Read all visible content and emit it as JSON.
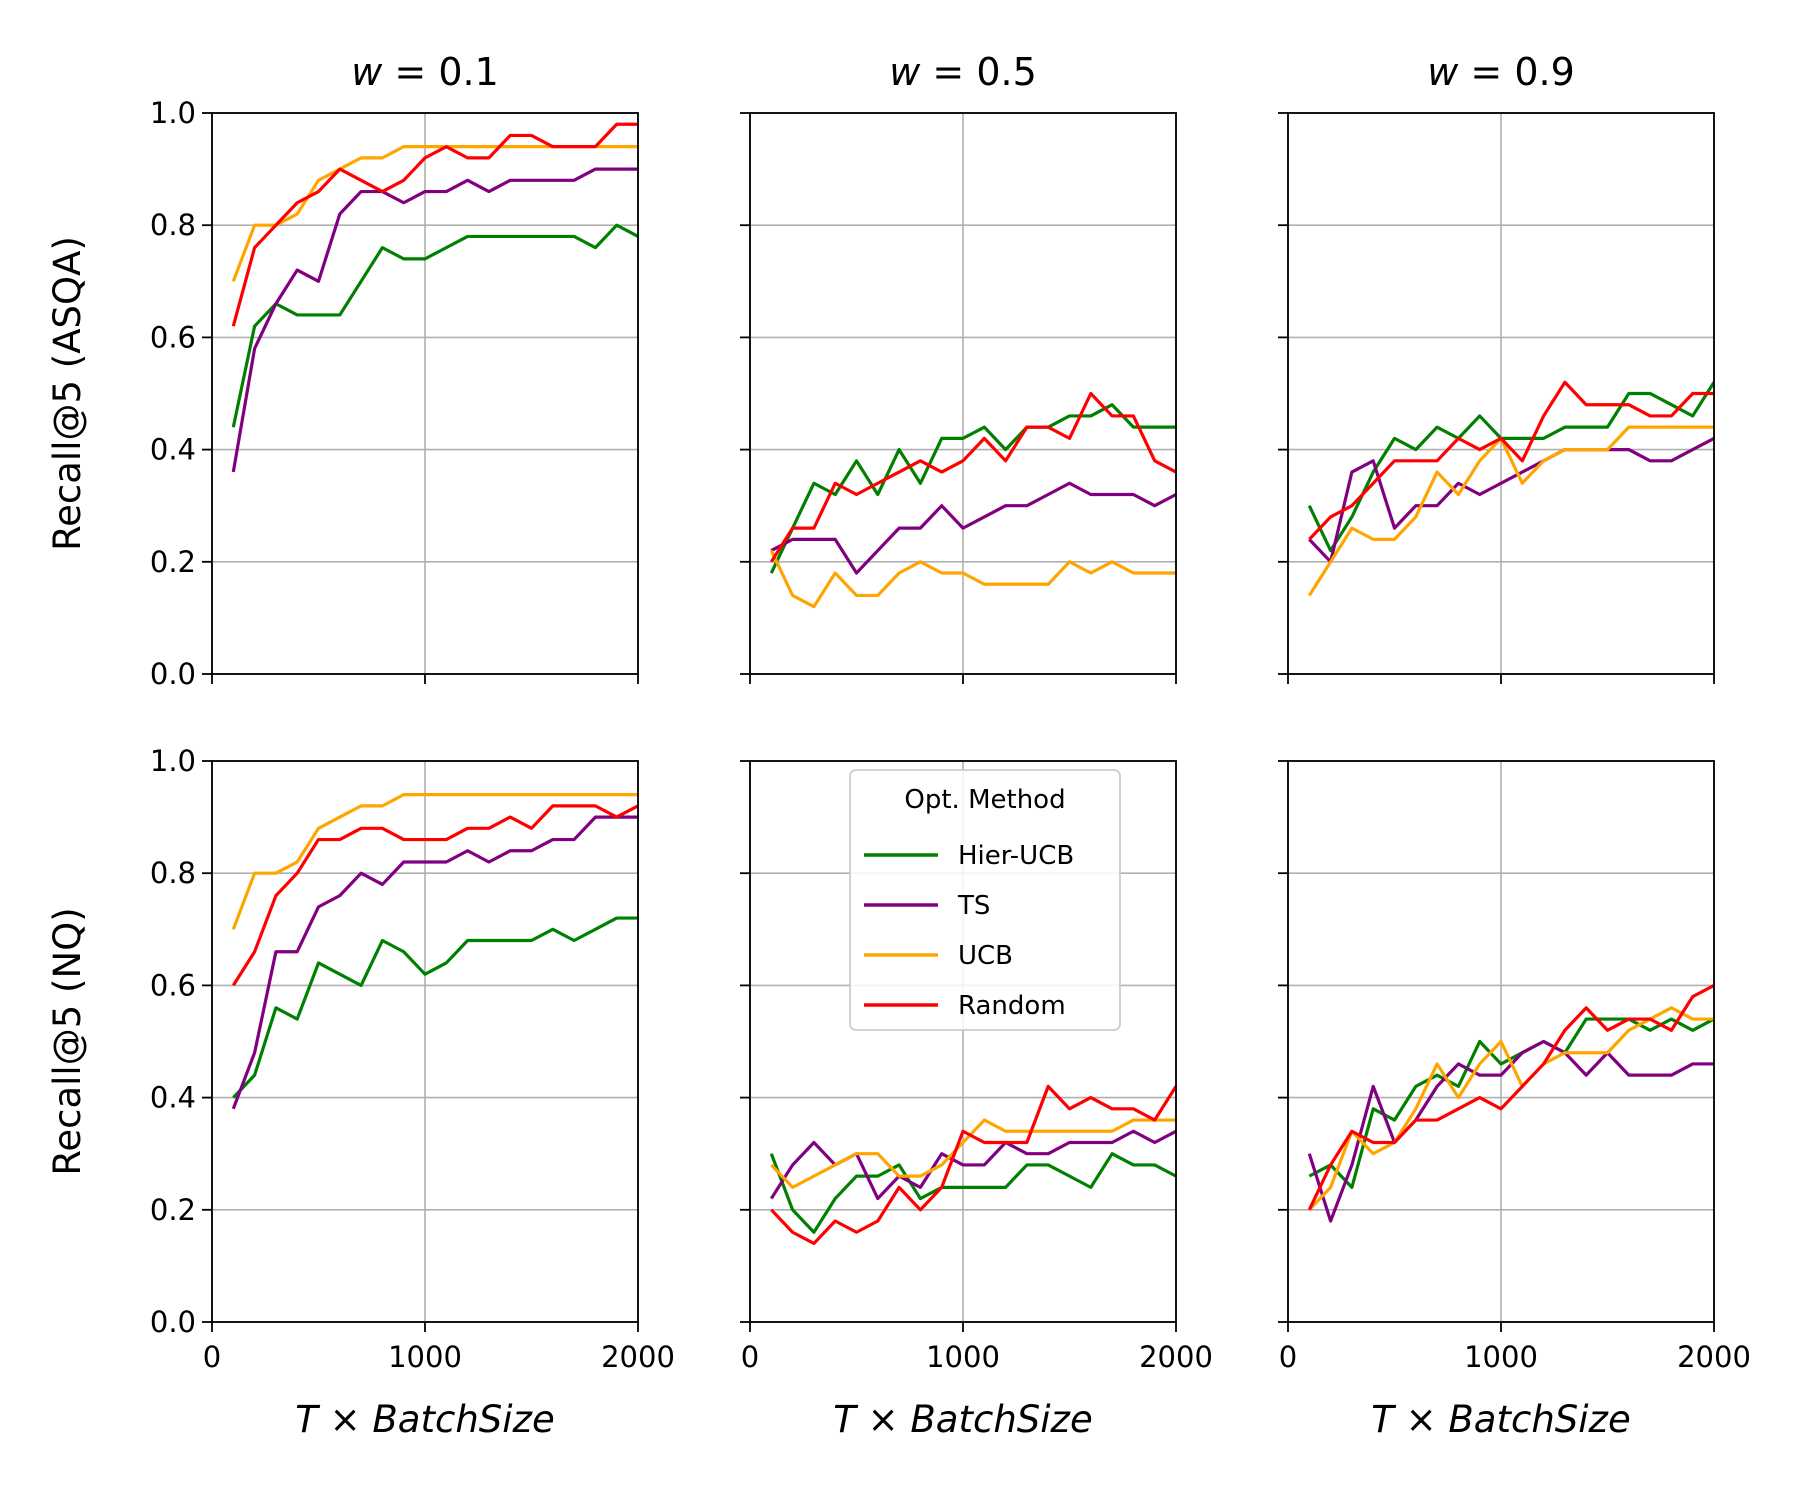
{
  "colors": {
    "Hier-UCB": "#008000",
    "TS": "#800080",
    "UCB": "#ffa500",
    "Random": "#ff0000",
    "grid": "#b0b0b0"
  },
  "legend": {
    "title": "Opt. Method",
    "entries": [
      "Hier-UCB",
      "TS",
      "UCB",
      "Random"
    ],
    "panel": 4,
    "placement": "upper-center"
  },
  "axes": {
    "xlabel_base": "T",
    "xlabel_times": " × ",
    "xlabel_rest": "BatchSize",
    "xticks": [
      0,
      1000,
      2000
    ],
    "yticks": [
      0.0,
      0.2,
      0.4,
      0.6,
      0.8,
      1.0
    ],
    "xlim": [
      0,
      2000
    ],
    "ylim": [
      0.0,
      1.0
    ]
  },
  "rows": [
    {
      "ylabel": "Recall@5 (ASQA)"
    },
    {
      "ylabel": "Recall@5 (NQ)"
    }
  ],
  "columns": [
    {
      "title_var": "w",
      "title_eq": " = ",
      "title_val": "0.1"
    },
    {
      "title_var": "w",
      "title_eq": " = ",
      "title_val": "0.5"
    },
    {
      "title_var": "w",
      "title_eq": " = ",
      "title_val": "0.9"
    }
  ],
  "chart_data": [
    {
      "type": "line",
      "row": 0,
      "col": 0,
      "grid": true,
      "x": [
        100,
        200,
        300,
        400,
        500,
        600,
        700,
        800,
        900,
        1000,
        1100,
        1200,
        1300,
        1400,
        1500,
        1600,
        1700,
        1800,
        1900,
        2000
      ],
      "series": [
        {
          "name": "Hier-UCB",
          "values": [
            0.44,
            0.62,
            0.66,
            0.64,
            0.64,
            0.64,
            0.7,
            0.76,
            0.74,
            0.74,
            0.76,
            0.78,
            0.78,
            0.78,
            0.78,
            0.78,
            0.78,
            0.76,
            0.8,
            0.78
          ]
        },
        {
          "name": "TS",
          "values": [
            0.36,
            0.58,
            0.66,
            0.72,
            0.7,
            0.82,
            0.86,
            0.86,
            0.84,
            0.86,
            0.86,
            0.88,
            0.86,
            0.88,
            0.88,
            0.88,
            0.88,
            0.9,
            0.9,
            0.9
          ]
        },
        {
          "name": "UCB",
          "values": [
            0.7,
            0.8,
            0.8,
            0.82,
            0.88,
            0.9,
            0.92,
            0.92,
            0.94,
            0.94,
            0.94,
            0.94,
            0.94,
            0.94,
            0.94,
            0.94,
            0.94,
            0.94,
            0.94,
            0.94
          ]
        },
        {
          "name": "Random",
          "values": [
            0.62,
            0.76,
            0.8,
            0.84,
            0.86,
            0.9,
            0.88,
            0.86,
            0.88,
            0.92,
            0.94,
            0.92,
            0.92,
            0.96,
            0.96,
            0.94,
            0.94,
            0.94,
            0.98,
            0.98
          ]
        }
      ]
    },
    {
      "type": "line",
      "row": 0,
      "col": 1,
      "grid": true,
      "x": [
        100,
        200,
        300,
        400,
        500,
        600,
        700,
        800,
        900,
        1000,
        1100,
        1200,
        1300,
        1400,
        1500,
        1600,
        1700,
        1800,
        1900,
        2000
      ],
      "series": [
        {
          "name": "Hier-UCB",
          "values": [
            0.18,
            0.26,
            0.34,
            0.32,
            0.38,
            0.32,
            0.4,
            0.34,
            0.42,
            0.42,
            0.44,
            0.4,
            0.44,
            0.44,
            0.46,
            0.46,
            0.48,
            0.44,
            0.44,
            0.44
          ]
        },
        {
          "name": "TS",
          "values": [
            0.22,
            0.24,
            0.24,
            0.24,
            0.18,
            0.22,
            0.26,
            0.26,
            0.3,
            0.26,
            0.28,
            0.3,
            0.3,
            0.32,
            0.34,
            0.32,
            0.32,
            0.32,
            0.3,
            0.32
          ]
        },
        {
          "name": "UCB",
          "values": [
            0.22,
            0.14,
            0.12,
            0.18,
            0.14,
            0.14,
            0.18,
            0.2,
            0.18,
            0.18,
            0.16,
            0.16,
            0.16,
            0.16,
            0.2,
            0.18,
            0.2,
            0.18,
            0.18,
            0.18
          ]
        },
        {
          "name": "Random",
          "values": [
            0.2,
            0.26,
            0.26,
            0.34,
            0.32,
            0.34,
            0.36,
            0.38,
            0.36,
            0.38,
            0.42,
            0.38,
            0.44,
            0.44,
            0.42,
            0.5,
            0.46,
            0.46,
            0.38,
            0.36
          ]
        }
      ]
    },
    {
      "type": "line",
      "row": 0,
      "col": 2,
      "grid": true,
      "x": [
        100,
        200,
        300,
        400,
        500,
        600,
        700,
        800,
        900,
        1000,
        1100,
        1200,
        1300,
        1400,
        1500,
        1600,
        1700,
        1800,
        1900,
        2000
      ],
      "series": [
        {
          "name": "Hier-UCB",
          "values": [
            0.3,
            0.22,
            0.28,
            0.36,
            0.42,
            0.4,
            0.44,
            0.42,
            0.46,
            0.42,
            0.42,
            0.42,
            0.44,
            0.44,
            0.44,
            0.5,
            0.5,
            0.48,
            0.46,
            0.52
          ]
        },
        {
          "name": "TS",
          "values": [
            0.24,
            0.2,
            0.36,
            0.38,
            0.26,
            0.3,
            0.3,
            0.34,
            0.32,
            0.34,
            0.36,
            0.38,
            0.4,
            0.4,
            0.4,
            0.4,
            0.38,
            0.38,
            0.4,
            0.42
          ]
        },
        {
          "name": "UCB",
          "values": [
            0.14,
            0.2,
            0.26,
            0.24,
            0.24,
            0.28,
            0.36,
            0.32,
            0.38,
            0.42,
            0.34,
            0.38,
            0.4,
            0.4,
            0.4,
            0.44,
            0.44,
            0.44,
            0.44,
            0.44
          ]
        },
        {
          "name": "Random",
          "values": [
            0.24,
            0.28,
            0.3,
            0.34,
            0.38,
            0.38,
            0.38,
            0.42,
            0.4,
            0.42,
            0.38,
            0.46,
            0.52,
            0.48,
            0.48,
            0.48,
            0.46,
            0.46,
            0.5,
            0.5
          ]
        }
      ]
    },
    {
      "type": "line",
      "row": 1,
      "col": 0,
      "grid": true,
      "x": [
        100,
        200,
        300,
        400,
        500,
        600,
        700,
        800,
        900,
        1000,
        1100,
        1200,
        1300,
        1400,
        1500,
        1600,
        1700,
        1800,
        1900,
        2000
      ],
      "series": [
        {
          "name": "Hier-UCB",
          "values": [
            0.4,
            0.44,
            0.56,
            0.54,
            0.64,
            0.62,
            0.6,
            0.68,
            0.66,
            0.62,
            0.64,
            0.68,
            0.68,
            0.68,
            0.68,
            0.7,
            0.68,
            0.7,
            0.72,
            0.72
          ]
        },
        {
          "name": "TS",
          "values": [
            0.38,
            0.48,
            0.66,
            0.66,
            0.74,
            0.76,
            0.8,
            0.78,
            0.82,
            0.82,
            0.82,
            0.84,
            0.82,
            0.84,
            0.84,
            0.86,
            0.86,
            0.9,
            0.9,
            0.9
          ]
        },
        {
          "name": "UCB",
          "values": [
            0.7,
            0.8,
            0.8,
            0.82,
            0.88,
            0.9,
            0.92,
            0.92,
            0.94,
            0.94,
            0.94,
            0.94,
            0.94,
            0.94,
            0.94,
            0.94,
            0.94,
            0.94,
            0.94,
            0.94
          ]
        },
        {
          "name": "Random",
          "values": [
            0.6,
            0.66,
            0.76,
            0.8,
            0.86,
            0.86,
            0.88,
            0.88,
            0.86,
            0.86,
            0.86,
            0.88,
            0.88,
            0.9,
            0.88,
            0.92,
            0.92,
            0.92,
            0.9,
            0.92
          ]
        }
      ]
    },
    {
      "type": "line",
      "row": 1,
      "col": 1,
      "grid": true,
      "x": [
        100,
        200,
        300,
        400,
        500,
        600,
        700,
        800,
        900,
        1000,
        1100,
        1200,
        1300,
        1400,
        1500,
        1600,
        1700,
        1800,
        1900,
        2000
      ],
      "series": [
        {
          "name": "Hier-UCB",
          "values": [
            0.3,
            0.2,
            0.16,
            0.22,
            0.26,
            0.26,
            0.28,
            0.22,
            0.24,
            0.24,
            0.24,
            0.24,
            0.28,
            0.28,
            0.26,
            0.24,
            0.3,
            0.28,
            0.28,
            0.26
          ]
        },
        {
          "name": "TS",
          "values": [
            0.22,
            0.28,
            0.32,
            0.28,
            0.3,
            0.22,
            0.26,
            0.24,
            0.3,
            0.28,
            0.28,
            0.32,
            0.3,
            0.3,
            0.32,
            0.32,
            0.32,
            0.34,
            0.32,
            0.34
          ]
        },
        {
          "name": "UCB",
          "values": [
            0.28,
            0.24,
            0.26,
            0.28,
            0.3,
            0.3,
            0.26,
            0.26,
            0.28,
            0.32,
            0.36,
            0.34,
            0.34,
            0.34,
            0.34,
            0.34,
            0.34,
            0.36,
            0.36,
            0.36
          ]
        },
        {
          "name": "Random",
          "values": [
            0.2,
            0.16,
            0.14,
            0.18,
            0.16,
            0.18,
            0.24,
            0.2,
            0.24,
            0.34,
            0.32,
            0.32,
            0.32,
            0.42,
            0.38,
            0.4,
            0.38,
            0.38,
            0.36,
            0.42
          ]
        }
      ]
    },
    {
      "type": "line",
      "row": 1,
      "col": 2,
      "grid": true,
      "x": [
        100,
        200,
        300,
        400,
        500,
        600,
        700,
        800,
        900,
        1000,
        1100,
        1200,
        1300,
        1400,
        1500,
        1600,
        1700,
        1800,
        1900,
        2000
      ],
      "series": [
        {
          "name": "Hier-UCB",
          "values": [
            0.26,
            0.28,
            0.24,
            0.38,
            0.36,
            0.42,
            0.44,
            0.42,
            0.5,
            0.46,
            0.48,
            0.5,
            0.48,
            0.54,
            0.54,
            0.54,
            0.52,
            0.54,
            0.52,
            0.54
          ]
        },
        {
          "name": "TS",
          "values": [
            0.3,
            0.18,
            0.28,
            0.42,
            0.32,
            0.36,
            0.42,
            0.46,
            0.44,
            0.44,
            0.48,
            0.5,
            0.48,
            0.44,
            0.48,
            0.44,
            0.44,
            0.44,
            0.46,
            0.46
          ]
        },
        {
          "name": "UCB",
          "values": [
            0.2,
            0.24,
            0.34,
            0.3,
            0.32,
            0.38,
            0.46,
            0.4,
            0.46,
            0.5,
            0.42,
            0.46,
            0.48,
            0.48,
            0.48,
            0.52,
            0.54,
            0.56,
            0.54,
            0.54
          ]
        },
        {
          "name": "Random",
          "values": [
            0.2,
            0.28,
            0.34,
            0.32,
            0.32,
            0.36,
            0.36,
            0.38,
            0.4,
            0.38,
            0.42,
            0.46,
            0.52,
            0.56,
            0.52,
            0.54,
            0.54,
            0.52,
            0.58,
            0.6
          ]
        }
      ]
    }
  ]
}
